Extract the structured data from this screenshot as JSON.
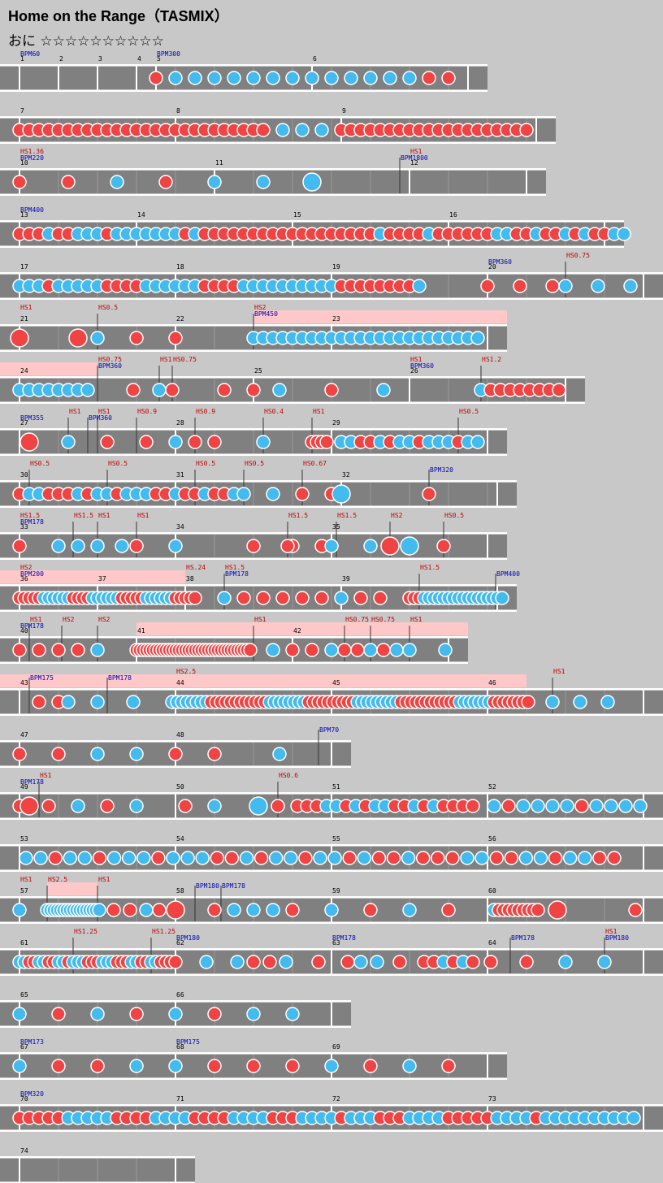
{
  "header": {
    "title": "Home on the Range（TASMIX）",
    "difficulty": "おに",
    "stars": "☆☆☆☆☆☆☆☆☆☆"
  },
  "rows": [
    {
      "measures": [
        "1",
        "2",
        "3",
        "4",
        "5",
        "6"
      ],
      "bpm": [
        "BPM60",
        "BPM300"
      ],
      "hs": []
    },
    {
      "measures": [
        "7",
        "8",
        "9"
      ],
      "bpm": [],
      "hs": []
    },
    {
      "measures": [
        "10",
        "11",
        "12"
      ],
      "bpm": [
        "BPM220",
        "BPM1800"
      ],
      "hs": [
        "HS1.36",
        "HS1"
      ]
    },
    {
      "measures": [
        "13",
        "14",
        "15",
        "16"
      ],
      "bpm": [
        "BPM400"
      ],
      "hs": []
    },
    {
      "measures": [
        "17",
        "18",
        "19",
        "20"
      ],
      "bpm": [
        "BPM360"
      ],
      "hs": [
        "HS0.75"
      ]
    },
    {
      "measures": [
        "21",
        "22",
        "23"
      ],
      "bpm": [
        "BPM450"
      ],
      "hs": [
        "HS1",
        "HS0.5",
        "HS2"
      ]
    },
    {
      "measures": [
        "24",
        "25",
        "26"
      ],
      "bpm": [
        "BPM360",
        "BPM360"
      ],
      "hs": [
        "HS0.75",
        "HS1",
        "HS0.75",
        "HS1",
        "HS1.2"
      ]
    },
    {
      "measures": [
        "27",
        "28",
        "29"
      ],
      "bpm": [
        "BPM355",
        "BPM360"
      ],
      "hs": [
        "HS1",
        "HS1",
        "HS0.9",
        "HS0.9",
        "HS0.4",
        "HS1",
        "HS0.5"
      ]
    },
    {
      "measures": [
        "30",
        "31",
        "32"
      ],
      "bpm": [
        "BPM320"
      ],
      "hs": [
        "HS0.5",
        "HS0.5",
        "HS0.5",
        "HS0.5",
        "HS0.67"
      ]
    },
    {
      "measures": [
        "33",
        "34",
        "35"
      ],
      "bpm": [
        "BPM178"
      ],
      "hs": [
        "HS1.5",
        "HS1.5",
        "HS1",
        "HS1",
        "HS1.5",
        "HS1.5",
        "HS2",
        "HS0.5"
      ]
    },
    {
      "measures": [
        "36",
        "37",
        "38",
        "39"
      ],
      "bpm": [
        "BPM200",
        "BPM178",
        "BPM400"
      ],
      "hs": [
        "HS2",
        "HS.24",
        "HS1.5",
        "HS1.5"
      ]
    },
    {
      "measures": [
        "40",
        "41",
        "42"
      ],
      "bpm": [
        "BPM178"
      ],
      "hs": [
        "HS1",
        "HS2",
        "HS2",
        "HS1",
        "HS0.75",
        "HS0.75",
        "HS1"
      ]
    },
    {
      "measures": [
        "43",
        "44",
        "45",
        "46"
      ],
      "bpm": [
        "BPM175",
        "BPM178"
      ],
      "hs": [
        "HS2.5",
        "HS1"
      ]
    },
    {
      "measures": [
        "47",
        "48"
      ],
      "bpm": [
        "BPM70"
      ],
      "hs": []
    },
    {
      "measures": [
        "49",
        "50",
        "51",
        "52"
      ],
      "bpm": [
        "BPM178"
      ],
      "hs": [
        "HS1",
        "HS0.6"
      ]
    },
    {
      "measures": [
        "53",
        "54",
        "55",
        "56"
      ],
      "bpm": [],
      "hs": []
    },
    {
      "measures": [
        "57",
        "58",
        "59",
        "60"
      ],
      "bpm": [
        "BPM180",
        "BPM178"
      ],
      "hs": [
        "HS1",
        "HS2.5",
        "HS1"
      ]
    },
    {
      "measures": [
        "61",
        "62",
        "63",
        "64"
      ],
      "bpm": [
        "BPM180",
        "BPM178",
        "BPM178",
        "BPM180"
      ],
      "hs": [
        "HS1.25",
        "HS1.25",
        "HS1"
      ]
    },
    {
      "measures": [
        "65",
        "66"
      ],
      "bpm": [],
      "hs": []
    },
    {
      "measures": [
        "67",
        "68",
        "69"
      ],
      "bpm": [
        "BPM173",
        "BPM175"
      ],
      "hs": []
    },
    {
      "measures": [
        "70",
        "71",
        "72",
        "73"
      ],
      "bpm": [
        "BPM320"
      ],
      "hs": []
    },
    {
      "measures": [
        "74"
      ],
      "bpm": [],
      "hs": []
    }
  ]
}
